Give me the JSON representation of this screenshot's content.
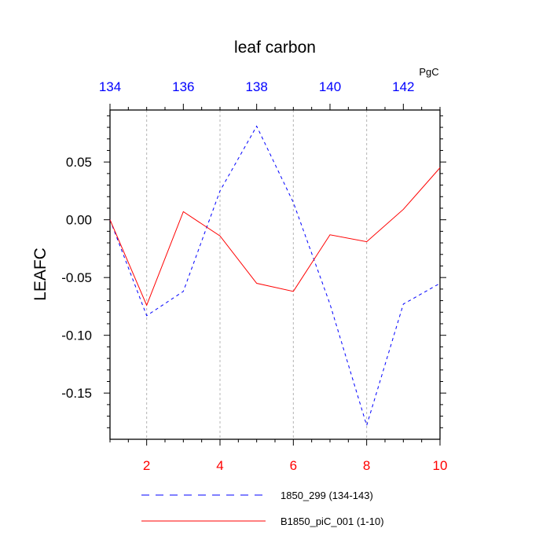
{
  "chart_data": {
    "type": "line",
    "title": "leaf carbon",
    "units": "PgC",
    "ylabel": "LEAFC",
    "ylim": [
      -0.19,
      0.095
    ],
    "yticks": [
      0.05,
      0.0,
      -0.05,
      -0.1,
      -0.15
    ],
    "yticklabels": [
      "0.05",
      "0.00",
      "-0.05",
      "-0.10",
      "-0.15"
    ],
    "bottom_axis": {
      "range": [
        1,
        10
      ],
      "ticks": [
        2,
        4,
        6,
        8,
        10
      ],
      "ticklabels": [
        "2",
        "4",
        "6",
        "8",
        "10"
      ],
      "color": "#ff0000"
    },
    "top_axis": {
      "range": [
        134,
        143
      ],
      "ticks": [
        134,
        136,
        138,
        140,
        142
      ],
      "ticklabels": [
        "134",
        "136",
        "138",
        "140",
        "142"
      ],
      "color": "#0000ff"
    },
    "grid": "vertical dashed gray at bottom-axis major ticks",
    "series": [
      {
        "name": "1850_299 (134-143)",
        "axis": "top",
        "color": "#0000ff",
        "dash": "dashed",
        "x": [
          134,
          135,
          136,
          137,
          138,
          139,
          140,
          141,
          142,
          143
        ],
        "values": [
          0.0,
          -0.083,
          -0.062,
          0.025,
          0.081,
          0.015,
          -0.073,
          -0.178,
          -0.073,
          -0.055
        ]
      },
      {
        "name": "B1850_piC_001 (1-10)",
        "axis": "bottom",
        "color": "#ff0000",
        "dash": "solid",
        "x": [
          1,
          2,
          3,
          4,
          5,
          6,
          7,
          8,
          9,
          10
        ],
        "values": [
          0.0,
          -0.074,
          0.007,
          -0.014,
          -0.055,
          -0.062,
          -0.013,
          -0.019,
          0.009,
          0.045
        ]
      }
    ],
    "legend_position": "bottom"
  }
}
